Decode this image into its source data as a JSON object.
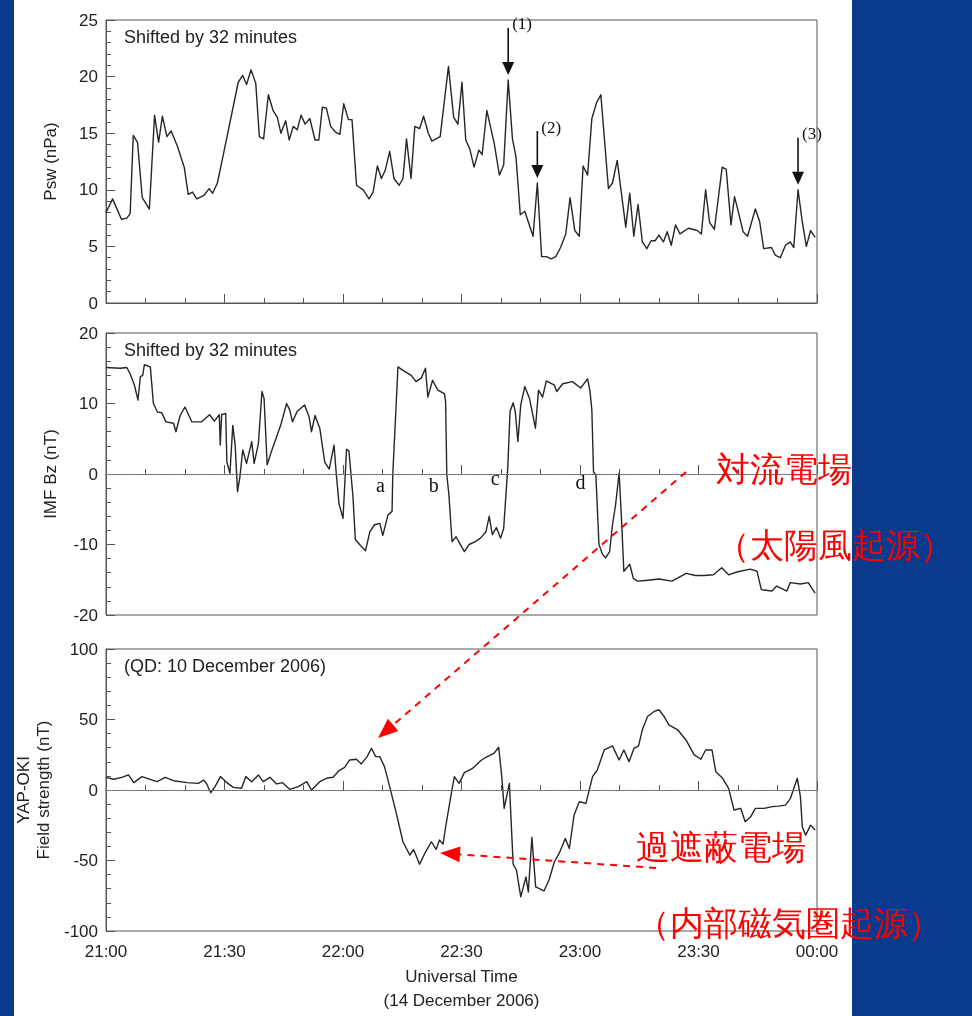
{
  "chart_data": [
    {
      "type": "line",
      "ylabel": "Psw (nPa)",
      "annotations": [
        "Shifted by 32 minutes",
        {
          "text": "(1)",
          "x": 22.697,
          "y": 19.7
        },
        {
          "text": "(2)",
          "x": 22.82,
          "y": 10.6
        },
        {
          "text": "(3)",
          "x": 23.92,
          "y": 10.0
        }
      ],
      "xlim": [
        21,
        24
      ],
      "xticks": [
        {
          "value": 21,
          "label": null
        },
        {
          "value": 21.5,
          "label": null
        },
        {
          "value": 22,
          "label": null
        },
        {
          "value": 22.5,
          "label": null
        },
        {
          "value": 23,
          "label": null
        },
        {
          "value": 23.5,
          "label": null
        },
        {
          "value": 24,
          "label": null
        }
      ],
      "ylim": [
        0,
        25
      ],
      "yticks": [
        0,
        5,
        10,
        15,
        20,
        25
      ],
      "tick_labels": "y",
      "grid": false,
      "x": [
        21.0,
        21.028,
        21.065,
        21.088,
        21.102,
        21.115,
        21.133,
        21.153,
        21.183,
        21.205,
        21.222,
        21.238,
        21.257,
        21.275,
        21.302,
        21.33,
        21.347,
        21.365,
        21.383,
        21.413,
        21.435,
        21.45,
        21.47,
        21.492,
        21.558,
        21.577,
        21.593,
        21.612,
        21.632,
        21.647,
        21.665,
        21.685,
        21.705,
        21.723,
        21.738,
        21.758,
        21.773,
        21.79,
        21.807,
        21.823,
        21.84,
        21.86,
        21.882,
        21.898,
        21.913,
        21.93,
        21.948,
        21.968,
        21.987,
        22.003,
        22.023,
        22.038,
        22.057,
        22.085,
        22.11,
        22.127,
        22.145,
        22.162,
        22.178,
        22.197,
        22.215,
        22.237,
        22.253,
        22.268,
        22.287,
        22.303,
        22.323,
        22.34,
        22.36,
        22.375,
        22.41,
        22.445,
        22.467,
        22.485,
        22.502,
        22.518,
        22.535,
        22.553,
        22.573,
        22.587,
        22.607,
        22.638,
        22.66,
        22.678,
        22.697,
        22.715,
        22.73,
        22.748,
        22.767,
        22.802,
        22.82,
        22.838,
        22.858,
        22.878,
        22.898,
        22.918,
        22.94,
        22.958,
        22.978,
        22.997,
        23.013,
        23.032,
        23.05,
        23.07,
        23.088,
        23.12,
        23.137,
        23.157,
        23.193,
        23.21,
        23.227,
        23.245,
        23.263,
        23.282,
        23.3,
        23.317,
        23.333,
        23.352,
        23.368,
        23.385,
        23.403,
        23.422,
        23.457,
        23.495,
        23.512,
        23.53,
        23.547,
        23.567,
        23.6,
        23.617,
        23.637,
        23.652,
        23.67,
        23.688,
        23.707,
        23.74,
        23.758,
        23.775,
        23.808,
        23.825,
        23.845,
        23.867,
        23.887,
        23.902,
        23.92,
        23.937,
        23.955,
        23.973,
        23.992
      ],
      "series": [
        {
          "color": "#262626",
          "values": [
            8.0,
            9.2,
            7.4,
            7.5,
            7.9,
            14.8,
            14.2,
            9.3,
            8.3,
            16.6,
            14.2,
            16.5,
            14.7,
            15.2,
            13.8,
            12.0,
            9.6,
            9.8,
            9.2,
            9.5,
            10.1,
            9.7,
            10.6,
            12.8,
            19.5,
            20.1,
            19.3,
            20.6,
            19.4,
            14.7,
            14.5,
            18.4,
            17.0,
            16.4,
            15.0,
            16.1,
            14.4,
            15.6,
            15.3,
            16.6,
            15.8,
            16.3,
            14.4,
            14.4,
            17.3,
            17.2,
            15.6,
            15.1,
            14.9,
            17.6,
            16.2,
            16.2,
            10.4,
            10.0,
            9.2,
            9.8,
            12.1,
            11.0,
            11.7,
            13.4,
            11.0,
            10.4,
            11.0,
            14.5,
            11.0,
            15.6,
            15.4,
            16.5,
            15.0,
            14.3,
            14.7,
            20.9,
            16.4,
            15.8,
            19.5,
            14.4,
            13.6,
            12.0,
            13.5,
            13.1,
            17.0,
            14.1,
            11.3,
            12.2,
            19.7,
            14.5,
            12.9,
            7.8,
            8.1,
            5.9,
            10.6,
            4.1,
            4.1,
            3.9,
            4.1,
            4.9,
            6.1,
            9.3,
            6.4,
            5.9,
            12.1,
            11.3,
            16.3,
            17.7,
            18.4,
            10.1,
            10.6,
            12.6,
            6.7,
            9.7,
            5.9,
            8.7,
            5.4,
            4.8,
            5.5,
            5.5,
            6.0,
            5.4,
            6.3,
            5.1,
            6.9,
            6.1,
            6.6,
            6.4,
            6.1,
            10.0,
            7.1,
            6.5,
            12.0,
            11.8,
            6.9,
            9.4,
            7.9,
            6.3,
            5.9,
            8.3,
            7.2,
            4.8,
            4.9,
            4.2,
            4.0,
            5.1,
            5.4,
            4.9,
            10.0,
            7.3,
            5.0,
            6.4,
            5.8
          ]
        }
      ]
    },
    {
      "type": "line",
      "ylabel": "IMF Bz (nT)",
      "annotations": [
        "Shifted by 32 minutes",
        {
          "text": "a",
          "x": 22.21,
          "y": -0.1
        },
        {
          "text": "b",
          "x": 22.438,
          "y": -0.1
        },
        {
          "text": "c",
          "x": 22.695,
          "y": 0.8
        },
        {
          "text": "d",
          "x": 23.057,
          "y": 0.3
        }
      ],
      "xlim": [
        21,
        24
      ],
      "xticks": [
        {
          "value": 21,
          "label": null
        },
        {
          "value": 21.5,
          "label": null
        },
        {
          "value": 22,
          "label": null
        },
        {
          "value": 22.5,
          "label": null
        },
        {
          "value": 23,
          "label": null
        },
        {
          "value": 23.5,
          "label": null
        },
        {
          "value": 24,
          "label": null
        }
      ],
      "ylim": [
        -20,
        20
      ],
      "yticks": [
        -20,
        -10,
        0,
        10,
        20
      ],
      "tick_labels": "y",
      "grid": false,
      "ref_lines": [
        {
          "axis": "y",
          "value": 0,
          "color": "#999999",
          "line_style": "dotted"
        }
      ],
      "x": [
        21.0,
        21.06,
        21.088,
        21.102,
        21.12,
        21.135,
        21.145,
        21.155,
        21.162,
        21.187,
        21.2,
        21.217,
        21.235,
        21.253,
        21.285,
        21.295,
        21.313,
        21.333,
        21.362,
        21.403,
        21.437,
        21.457,
        21.478,
        21.482,
        21.488,
        21.505,
        21.51,
        21.523,
        21.535,
        21.545,
        21.555,
        21.565,
        21.577,
        21.593,
        21.615,
        21.625,
        21.643,
        21.658,
        21.667,
        21.68,
        21.698,
        21.737,
        21.762,
        21.775,
        21.787,
        21.807,
        21.838,
        21.857,
        21.867,
        21.882,
        21.902,
        21.923,
        21.942,
        21.962,
        21.972,
        21.983,
        22.0,
        22.015,
        22.025,
        22.042,
        22.052,
        22.07,
        22.095,
        22.113,
        22.133,
        22.155,
        22.168,
        22.19,
        22.207,
        22.21,
        22.232,
        22.253,
        22.288,
        22.308,
        22.33,
        22.348,
        22.358,
        22.378,
        22.4,
        22.428,
        22.433,
        22.438,
        22.447,
        22.46,
        22.477,
        22.492,
        22.512,
        22.532,
        22.558,
        22.58,
        22.603,
        22.617,
        22.63,
        22.647,
        22.665,
        22.678,
        22.695,
        22.705,
        22.718,
        22.727,
        22.738,
        22.75,
        22.767,
        22.787,
        22.812,
        22.825,
        22.842,
        22.858,
        22.892,
        22.902,
        22.927,
        22.968,
        23.003,
        23.032,
        23.042,
        23.05,
        23.057,
        23.067,
        23.08,
        23.095,
        23.108,
        23.125,
        23.137,
        23.15,
        23.165,
        23.175,
        23.185,
        23.21,
        23.225,
        23.242,
        23.277,
        23.333,
        23.388,
        23.448,
        23.487,
        23.522,
        23.563,
        23.598,
        23.627,
        23.662,
        23.718,
        23.747,
        23.765,
        23.81,
        23.83,
        23.873,
        23.887,
        23.93,
        23.963,
        23.992
      ],
      "series": [
        {
          "color": "#262626",
          "values": [
            15.1,
            15.0,
            15.1,
            14.2,
            12.6,
            10.5,
            13.8,
            14.0,
            15.5,
            15.2,
            10.0,
            8.8,
            8.7,
            7.4,
            7.2,
            6.0,
            8.3,
            9.5,
            7.4,
            7.4,
            8.4,
            7.5,
            8.4,
            4.1,
            8.4,
            8.6,
            1.7,
            0.1,
            6.9,
            4.1,
            -2.5,
            -0.4,
            3.4,
            1.5,
            4.6,
            1.5,
            4.3,
            11.7,
            10.7,
            1.3,
            3.2,
            6.9,
            10.0,
            9.1,
            7.4,
            8.9,
            9.8,
            8.1,
            6.0,
            8.3,
            6.5,
            1.7,
            0.7,
            4.1,
            -0.1,
            -4.2,
            -6.3,
            3.5,
            3.3,
            -3.2,
            -9.3,
            -10.0,
            -10.9,
            -8.2,
            -7.2,
            -7.0,
            -8.7,
            -5.8,
            -5.3,
            -0.1,
            15.2,
            14.7,
            14.0,
            13.1,
            13.6,
            15.0,
            10.9,
            13.3,
            11.9,
            11.4,
            10.2,
            -0.1,
            -3.0,
            -9.6,
            -8.9,
            -9.8,
            -11.0,
            -10.0,
            -9.6,
            -9.1,
            -8.2,
            -6.0,
            -8.6,
            -7.6,
            -9.1,
            -7.7,
            0.8,
            8.9,
            10.1,
            8.8,
            4.6,
            9.8,
            12.4,
            10.7,
            6.5,
            11.9,
            10.9,
            13.2,
            12.6,
            11.7,
            12.8,
            13.1,
            12.2,
            13.5,
            11.8,
            9.1,
            0.3,
            -0.1,
            -10.0,
            -11.4,
            -11.9,
            -11.0,
            -7.2,
            -4.4,
            0.1,
            -6.3,
            -13.8,
            -12.8,
            -14.8,
            -15.2,
            -15.1,
            -14.9,
            -15.2,
            -14.1,
            -14.4,
            -14.4,
            -14.3,
            -13.3,
            -14.3,
            -13.9,
            -13.5,
            -13.8,
            -16.4,
            -16.6,
            -15.9,
            -16.6,
            -15.4,
            -15.6,
            -15.4,
            -16.9
          ]
        }
      ]
    },
    {
      "type": "line",
      "ylabel": "YAP-OKI\nField strength (nT)",
      "xlabel": "Universal Time\n(14 December 2006)",
      "annotations": [
        "(QD: 10 December 2006)",
        "対流電場",
        "（太陽風起源）",
        "過遮蔽電場",
        "（内部磁気圏起源）"
      ],
      "xlim": [
        21,
        24
      ],
      "xticks": [
        {
          "value": 21,
          "label": "21:00"
        },
        {
          "value": 21.5,
          "label": "21:30"
        },
        {
          "value": 22,
          "label": "22:00"
        },
        {
          "value": 22.5,
          "label": "22:30"
        },
        {
          "value": 23,
          "label": "23:00"
        },
        {
          "value": 23.5,
          "label": "23:30"
        },
        {
          "value": 24,
          "label": "00:00"
        }
      ],
      "ylim": [
        -100,
        100
      ],
      "yticks": [
        -100,
        -50,
        0,
        50,
        100
      ],
      "grid": false,
      "ref_lines": [
        {
          "axis": "y",
          "value": 0,
          "color": "#999999",
          "line_style": "dotted"
        }
      ],
      "x": [
        21.0,
        21.032,
        21.067,
        21.095,
        21.117,
        21.152,
        21.215,
        21.25,
        21.285,
        21.342,
        21.39,
        21.412,
        21.425,
        21.442,
        21.46,
        21.483,
        21.51,
        21.537,
        21.572,
        21.59,
        21.615,
        21.643,
        21.663,
        21.692,
        21.72,
        21.745,
        21.775,
        21.812,
        21.847,
        21.867,
        21.902,
        21.93,
        21.958,
        21.983,
        22.007,
        22.028,
        22.057,
        22.077,
        22.102,
        22.12,
        22.138,
        22.155,
        22.175,
        22.197,
        22.225,
        22.253,
        22.282,
        22.298,
        22.323,
        22.345,
        22.373,
        22.393,
        22.407,
        22.422,
        22.432,
        22.457,
        22.47,
        22.49,
        22.512,
        22.547,
        22.562,
        22.582,
        22.603,
        22.638,
        22.657,
        22.67,
        22.68,
        22.702,
        22.718,
        22.732,
        22.75,
        22.772,
        22.782,
        22.797,
        22.813,
        22.848,
        22.87,
        22.892,
        22.912,
        22.938,
        22.955,
        22.975,
        22.997,
        23.025,
        23.053,
        23.073,
        23.102,
        23.137,
        23.165,
        23.185,
        23.207,
        23.228,
        23.247,
        23.263,
        23.285,
        23.313,
        23.333,
        23.355,
        23.375,
        23.412,
        23.447,
        23.482,
        23.51,
        23.53,
        23.557,
        23.573,
        23.602,
        23.627,
        23.65,
        23.678,
        23.697,
        23.72,
        23.74,
        23.777,
        23.812,
        23.838,
        23.867,
        23.888,
        23.917,
        23.93,
        23.938,
        23.952,
        23.973,
        23.992
      ],
      "series": [
        {
          "color": "#262626",
          "values": [
            9.0,
            7.6,
            9.0,
            10.7,
            5.2,
            9.5,
            5.9,
            9.0,
            6.6,
            5.2,
            4.7,
            7.1,
            4.3,
            -1.9,
            2.4,
            9.5,
            5.2,
            1.9,
            1.2,
            9.5,
            5.9,
            10.7,
            5.9,
            9.0,
            4.3,
            5.2,
            0.5,
            2.4,
            5.9,
            0.0,
            5.9,
            8.3,
            9.0,
            13.7,
            16.1,
            21.3,
            21.8,
            18.5,
            23.7,
            29.6,
            23.7,
            23.7,
            16.6,
            2.4,
            -16.6,
            -36.7,
            -46.2,
            -42.2,
            -52.6,
            -45.0,
            -36.7,
            -42.2,
            -35.5,
            -38.4,
            -27.3,
            -2.4,
            9.5,
            4.7,
            12.3,
            15.4,
            17.8,
            20.9,
            23.2,
            26.1,
            30.3,
            9.5,
            -13.0,
            4.7,
            -52.6,
            -56.9,
            -75.8,
            -61.6,
            -72.3,
            -33.6,
            -68.7,
            -71.6,
            -63.5,
            -50.9,
            -45.0,
            -34.4,
            -41.5,
            -17.8,
            -8.3,
            -9.5,
            9.5,
            14.2,
            28.4,
            31.3,
            21.3,
            28.4,
            20.1,
            29.6,
            31.3,
            42.7,
            52.1,
            55.7,
            56.9,
            52.1,
            46.2,
            42.7,
            35.5,
            24.9,
            21.8,
            28.4,
            28.4,
            13.0,
            8.3,
            1.2,
            -14.2,
            -13.0,
            -22.5,
            -19.0,
            -13.0,
            -13.0,
            -11.8,
            -11.4,
            -10.7,
            -5.9,
            8.3,
            -4.7,
            -26.1,
            -32.0,
            -24.9,
            -28.4
          ]
        }
      ]
    }
  ]
}
